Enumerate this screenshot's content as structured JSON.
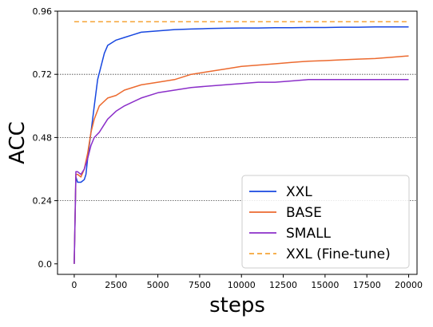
{
  "chart_data": {
    "type": "line",
    "xlabel": "steps",
    "ylabel": "ACC",
    "xlim": [
      -1000,
      20500
    ],
    "ylim": [
      -0.04,
      0.96
    ],
    "xticks": [
      "0",
      "2500",
      "5000",
      "7500",
      "10000",
      "12500",
      "15000",
      "17500",
      "20000"
    ],
    "yticks": [
      "0.0",
      "0.24",
      "0.48",
      "0.72",
      "0.96"
    ],
    "grid": "horizontal dotted lines at 0.24, 0.48 and 0.72",
    "legend_position": "lower-right",
    "series": [
      {
        "name": "XXL",
        "color": "#1747e0",
        "style": "solid",
        "x": [
          0,
          100,
          200,
          400,
          600,
          700,
          800,
          1000,
          1200,
          1400,
          1600,
          1800,
          2000,
          2500,
          3000,
          3500,
          4000,
          5000,
          6000,
          7000,
          8000,
          9000,
          10000,
          11000,
          12000,
          13000,
          14000,
          15000,
          16000,
          17000,
          18000,
          19000,
          20000
        ],
        "y": [
          0.0,
          0.33,
          0.31,
          0.31,
          0.32,
          0.34,
          0.4,
          0.5,
          0.6,
          0.7,
          0.75,
          0.8,
          0.83,
          0.85,
          0.86,
          0.87,
          0.88,
          0.885,
          0.89,
          0.892,
          0.894,
          0.895,
          0.896,
          0.896,
          0.897,
          0.897,
          0.898,
          0.898,
          0.899,
          0.899,
          0.9,
          0.9,
          0.9
        ]
      },
      {
        "name": "BASE",
        "color": "#ec6a2f",
        "style": "solid",
        "x": [
          0,
          100,
          200,
          400,
          600,
          800,
          1000,
          1200,
          1500,
          2000,
          2500,
          3000,
          4000,
          5000,
          6000,
          7000,
          8000,
          9000,
          10000,
          11000,
          12000,
          13000,
          14000,
          15000,
          16000,
          17000,
          18000,
          19000,
          20000
        ],
        "y": [
          0.0,
          0.34,
          0.34,
          0.33,
          0.36,
          0.42,
          0.5,
          0.55,
          0.6,
          0.63,
          0.64,
          0.66,
          0.68,
          0.69,
          0.7,
          0.72,
          0.73,
          0.74,
          0.75,
          0.755,
          0.76,
          0.765,
          0.77,
          0.772,
          0.775,
          0.778,
          0.78,
          0.785,
          0.79
        ]
      },
      {
        "name": "SMALL",
        "color": "#8b2fc9",
        "style": "solid",
        "x": [
          0,
          100,
          200,
          400,
          600,
          800,
          1000,
          1200,
          1500,
          2000,
          2500,
          3000,
          4000,
          5000,
          6000,
          7000,
          8000,
          9000,
          10000,
          11000,
          12000,
          13000,
          14000,
          15000,
          16000,
          17000,
          18000,
          19000,
          20000
        ],
        "y": [
          0.0,
          0.35,
          0.35,
          0.34,
          0.36,
          0.4,
          0.45,
          0.48,
          0.5,
          0.55,
          0.58,
          0.6,
          0.63,
          0.65,
          0.66,
          0.67,
          0.675,
          0.68,
          0.685,
          0.69,
          0.69,
          0.695,
          0.7,
          0.7,
          0.7,
          0.7,
          0.7,
          0.7,
          0.7
        ]
      },
      {
        "name": "XXL (Fine-tune)",
        "color": "#f5a537",
        "style": "dashed",
        "x": [
          0,
          20000
        ],
        "y": [
          0.92,
          0.92
        ]
      }
    ]
  }
}
